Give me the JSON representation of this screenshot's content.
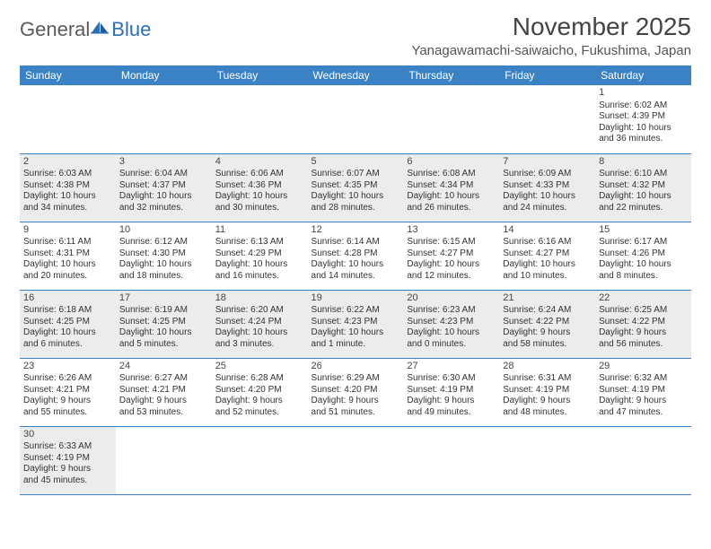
{
  "logo": {
    "general": "General",
    "blue": "Blue"
  },
  "title": "November 2025",
  "subtitle": "Yanagawamachi-saiwaicho, Fukushima, Japan",
  "colors": {
    "header_bg": "#3a82c4",
    "header_text": "#ffffff",
    "shaded_cell": "#ececec",
    "cell_border": "#3a82c4",
    "text": "#333333",
    "logo_gray": "#5a5a5a",
    "logo_blue": "#2a6fb5"
  },
  "weekdays": [
    "Sunday",
    "Monday",
    "Tuesday",
    "Wednesday",
    "Thursday",
    "Friday",
    "Saturday"
  ],
  "weeks": [
    [
      {
        "empty": true
      },
      {
        "empty": true
      },
      {
        "empty": true
      },
      {
        "empty": true
      },
      {
        "empty": true
      },
      {
        "empty": true
      },
      {
        "n": "1",
        "sunrise": "Sunrise: 6:02 AM",
        "sunset": "Sunset: 4:39 PM",
        "day1": "Daylight: 10 hours",
        "day2": "and 36 minutes."
      }
    ],
    [
      {
        "n": "2",
        "shaded": true,
        "sunrise": "Sunrise: 6:03 AM",
        "sunset": "Sunset: 4:38 PM",
        "day1": "Daylight: 10 hours",
        "day2": "and 34 minutes."
      },
      {
        "n": "3",
        "shaded": true,
        "sunrise": "Sunrise: 6:04 AM",
        "sunset": "Sunset: 4:37 PM",
        "day1": "Daylight: 10 hours",
        "day2": "and 32 minutes."
      },
      {
        "n": "4",
        "shaded": true,
        "sunrise": "Sunrise: 6:06 AM",
        "sunset": "Sunset: 4:36 PM",
        "day1": "Daylight: 10 hours",
        "day2": "and 30 minutes."
      },
      {
        "n": "5",
        "shaded": true,
        "sunrise": "Sunrise: 6:07 AM",
        "sunset": "Sunset: 4:35 PM",
        "day1": "Daylight: 10 hours",
        "day2": "and 28 minutes."
      },
      {
        "n": "6",
        "shaded": true,
        "sunrise": "Sunrise: 6:08 AM",
        "sunset": "Sunset: 4:34 PM",
        "day1": "Daylight: 10 hours",
        "day2": "and 26 minutes."
      },
      {
        "n": "7",
        "shaded": true,
        "sunrise": "Sunrise: 6:09 AM",
        "sunset": "Sunset: 4:33 PM",
        "day1": "Daylight: 10 hours",
        "day2": "and 24 minutes."
      },
      {
        "n": "8",
        "shaded": true,
        "sunrise": "Sunrise: 6:10 AM",
        "sunset": "Sunset: 4:32 PM",
        "day1": "Daylight: 10 hours",
        "day2": "and 22 minutes."
      }
    ],
    [
      {
        "n": "9",
        "sunrise": "Sunrise: 6:11 AM",
        "sunset": "Sunset: 4:31 PM",
        "day1": "Daylight: 10 hours",
        "day2": "and 20 minutes."
      },
      {
        "n": "10",
        "sunrise": "Sunrise: 6:12 AM",
        "sunset": "Sunset: 4:30 PM",
        "day1": "Daylight: 10 hours",
        "day2": "and 18 minutes."
      },
      {
        "n": "11",
        "sunrise": "Sunrise: 6:13 AM",
        "sunset": "Sunset: 4:29 PM",
        "day1": "Daylight: 10 hours",
        "day2": "and 16 minutes."
      },
      {
        "n": "12",
        "sunrise": "Sunrise: 6:14 AM",
        "sunset": "Sunset: 4:28 PM",
        "day1": "Daylight: 10 hours",
        "day2": "and 14 minutes."
      },
      {
        "n": "13",
        "sunrise": "Sunrise: 6:15 AM",
        "sunset": "Sunset: 4:27 PM",
        "day1": "Daylight: 10 hours",
        "day2": "and 12 minutes."
      },
      {
        "n": "14",
        "sunrise": "Sunrise: 6:16 AM",
        "sunset": "Sunset: 4:27 PM",
        "day1": "Daylight: 10 hours",
        "day2": "and 10 minutes."
      },
      {
        "n": "15",
        "sunrise": "Sunrise: 6:17 AM",
        "sunset": "Sunset: 4:26 PM",
        "day1": "Daylight: 10 hours",
        "day2": "and 8 minutes."
      }
    ],
    [
      {
        "n": "16",
        "shaded": true,
        "sunrise": "Sunrise: 6:18 AM",
        "sunset": "Sunset: 4:25 PM",
        "day1": "Daylight: 10 hours",
        "day2": "and 6 minutes."
      },
      {
        "n": "17",
        "shaded": true,
        "sunrise": "Sunrise: 6:19 AM",
        "sunset": "Sunset: 4:25 PM",
        "day1": "Daylight: 10 hours",
        "day2": "and 5 minutes."
      },
      {
        "n": "18",
        "shaded": true,
        "sunrise": "Sunrise: 6:20 AM",
        "sunset": "Sunset: 4:24 PM",
        "day1": "Daylight: 10 hours",
        "day2": "and 3 minutes."
      },
      {
        "n": "19",
        "shaded": true,
        "sunrise": "Sunrise: 6:22 AM",
        "sunset": "Sunset: 4:23 PM",
        "day1": "Daylight: 10 hours",
        "day2": "and 1 minute."
      },
      {
        "n": "20",
        "shaded": true,
        "sunrise": "Sunrise: 6:23 AM",
        "sunset": "Sunset: 4:23 PM",
        "day1": "Daylight: 10 hours",
        "day2": "and 0 minutes."
      },
      {
        "n": "21",
        "shaded": true,
        "sunrise": "Sunrise: 6:24 AM",
        "sunset": "Sunset: 4:22 PM",
        "day1": "Daylight: 9 hours",
        "day2": "and 58 minutes."
      },
      {
        "n": "22",
        "shaded": true,
        "sunrise": "Sunrise: 6:25 AM",
        "sunset": "Sunset: 4:22 PM",
        "day1": "Daylight: 9 hours",
        "day2": "and 56 minutes."
      }
    ],
    [
      {
        "n": "23",
        "sunrise": "Sunrise: 6:26 AM",
        "sunset": "Sunset: 4:21 PM",
        "day1": "Daylight: 9 hours",
        "day2": "and 55 minutes."
      },
      {
        "n": "24",
        "sunrise": "Sunrise: 6:27 AM",
        "sunset": "Sunset: 4:21 PM",
        "day1": "Daylight: 9 hours",
        "day2": "and 53 minutes."
      },
      {
        "n": "25",
        "sunrise": "Sunrise: 6:28 AM",
        "sunset": "Sunset: 4:20 PM",
        "day1": "Daylight: 9 hours",
        "day2": "and 52 minutes."
      },
      {
        "n": "26",
        "sunrise": "Sunrise: 6:29 AM",
        "sunset": "Sunset: 4:20 PM",
        "day1": "Daylight: 9 hours",
        "day2": "and 51 minutes."
      },
      {
        "n": "27",
        "sunrise": "Sunrise: 6:30 AM",
        "sunset": "Sunset: 4:19 PM",
        "day1": "Daylight: 9 hours",
        "day2": "and 49 minutes."
      },
      {
        "n": "28",
        "sunrise": "Sunrise: 6:31 AM",
        "sunset": "Sunset: 4:19 PM",
        "day1": "Daylight: 9 hours",
        "day2": "and 48 minutes."
      },
      {
        "n": "29",
        "sunrise": "Sunrise: 6:32 AM",
        "sunset": "Sunset: 4:19 PM",
        "day1": "Daylight: 9 hours",
        "day2": "and 47 minutes."
      }
    ],
    [
      {
        "n": "30",
        "shaded": true,
        "sunrise": "Sunrise: 6:33 AM",
        "sunset": "Sunset: 4:19 PM",
        "day1": "Daylight: 9 hours",
        "day2": "and 45 minutes."
      },
      {
        "empty": true
      },
      {
        "empty": true
      },
      {
        "empty": true
      },
      {
        "empty": true
      },
      {
        "empty": true
      },
      {
        "empty": true
      }
    ]
  ]
}
